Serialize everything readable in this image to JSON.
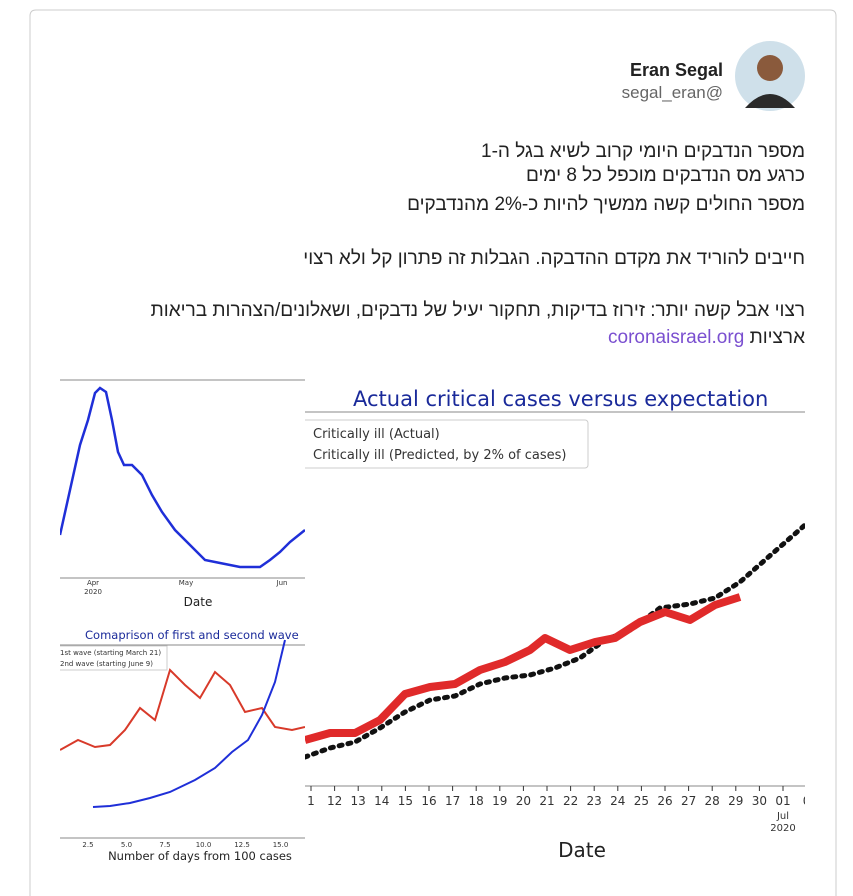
{
  "author": {
    "name": "Eran Segal",
    "handle": "segal_eran@"
  },
  "tweet": {
    "lines": [
      "מספר הנדבקים היומי קרוב לשיא בגל ה-1",
      "כרגע מס הנדבקים מוכפל כל 8 ימים",
      "מספר החולים קשה ממשיך להיות כ-2% מהנדבקים",
      "חייבים להוריד את מקדם ההדבקה. הגבלות זה פתרון קל ולא רצוי",
      "רצוי אבל קשה יותר: זירוז בדיקות, תחקור יעיל של נדבקים, ושאלונים/הצהרות בריאות",
      "ארציות"
    ],
    "link": "coronaisrael.org"
  },
  "images": {
    "main": {
      "title": "Actual critical cases versus expectation",
      "legend": [
        "Critically ill (Actual)",
        "Critically ill (Predicted, by 2% of cases)"
      ],
      "xticks": [
        "1",
        "12",
        "13",
        "14",
        "15",
        "16",
        "17",
        "18",
        "19",
        "20",
        "21",
        "22",
        "23",
        "24",
        "25",
        "26",
        "27",
        "28",
        "29",
        "30",
        "01",
        "0"
      ],
      "xtick_sub": [
        "Jul",
        "2020"
      ],
      "xlabel": "Date"
    },
    "top_left": {
      "xticks": [
        "Apr",
        "May",
        "Jun"
      ],
      "xtick_sub": "2020",
      "xlabel": "Date"
    },
    "bottom_left": {
      "title": "Comaprison of first and second wave",
      "legend": [
        "1st wave (starting March 21)",
        "2nd wave (starting June 9)"
      ],
      "xticks": [
        "2.5",
        "5.0",
        "7.5",
        "10.0",
        "12.5",
        "15.0"
      ],
      "xlabel": "Number of days from 100 cases"
    }
  }
}
